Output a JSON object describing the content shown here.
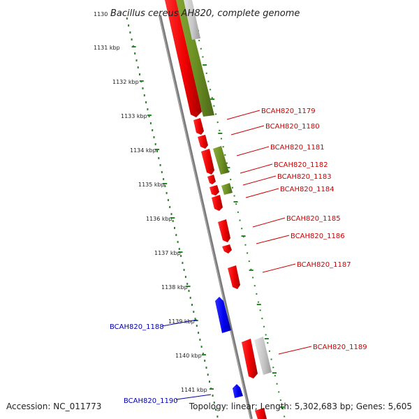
{
  "title": "Bacillus cereus AH820, complete genome",
  "start_tick": "1130",
  "ticks": [
    "1131 kbp",
    "1132 kbp",
    "1133 kbp",
    "1134 kbp",
    "1135 kbp",
    "1136 kbp",
    "1137 kbp",
    "1138 kbp",
    "1139 kbp",
    "1140 kbp",
    "1141 kbp"
  ],
  "footer": {
    "accession": "Accession: NC_011773",
    "topology": "Topology: linear; Length: 5,302,683 bp; Genes: 5,605"
  },
  "colors": {
    "forward_gene": "#ff0000",
    "reverse_gene": "#0000ff",
    "forward_label": "#cc0000",
    "reverse_label": "#0000aa",
    "feature_green": "#6b8e23",
    "feature_grey": "#c8c8c8",
    "backbone": "#808080",
    "scale_dots": "#228b22"
  },
  "gene_labels": [
    {
      "id": "forward-1179",
      "text": "BCAH820_1179",
      "strand": "forward"
    },
    {
      "id": "forward-1180",
      "text": "BCAH820_1180",
      "strand": "forward"
    },
    {
      "id": "forward-1181",
      "text": "BCAH820_1181",
      "strand": "forward"
    },
    {
      "id": "forward-1182",
      "text": "BCAH820_1182",
      "strand": "forward"
    },
    {
      "id": "forward-1183",
      "text": "BCAH820_1183",
      "strand": "forward"
    },
    {
      "id": "forward-1184",
      "text": "BCAH820_1184",
      "strand": "forward"
    },
    {
      "id": "forward-1185",
      "text": "BCAH820_1185",
      "strand": "forward"
    },
    {
      "id": "forward-1186",
      "text": "BCAH820_1186",
      "strand": "forward"
    },
    {
      "id": "forward-1187",
      "text": "BCAH820_1187",
      "strand": "forward"
    },
    {
      "id": "forward-1189",
      "text": "BCAH820_1189",
      "strand": "forward"
    },
    {
      "id": "reverse-1188",
      "text": "BCAH820_1188",
      "strand": "reverse"
    },
    {
      "id": "reverse-1190",
      "text": "BCAH820_1190",
      "strand": "reverse"
    }
  ]
}
